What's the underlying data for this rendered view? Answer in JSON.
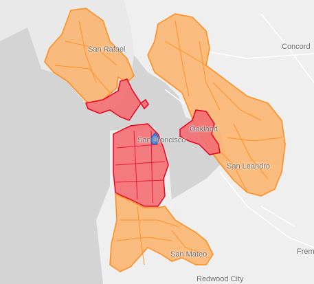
{
  "map": {
    "base_colors": {
      "water": "#d4d4d4",
      "land": "#efefef",
      "road": "#ffffff"
    },
    "region_colors": {
      "orange_fill": "#fbb36a",
      "orange_stroke": "#ff8c1a",
      "red_fill": "#f36e73",
      "red_stroke": "#e8001c",
      "blue_fill": "#3b7ddd"
    },
    "labels": {
      "san_rafael": "San Rafael",
      "concord": "Concord",
      "oakland": "Oakland",
      "san_francisco": "San Francisco",
      "san_leandro": "San Leandro",
      "san_mateo": "San Mateo",
      "fremont": "Frem",
      "redwood_city": "Redwood City"
    }
  }
}
